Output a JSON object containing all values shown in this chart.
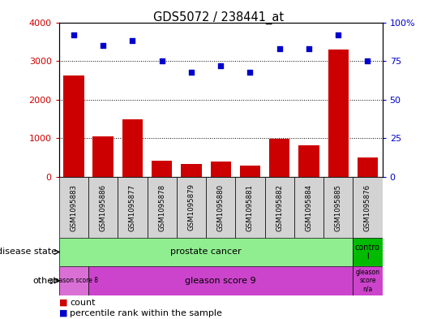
{
  "title": "GDS5072 / 238441_at",
  "samples": [
    "GSM1095883",
    "GSM1095886",
    "GSM1095877",
    "GSM1095878",
    "GSM1095879",
    "GSM1095880",
    "GSM1095881",
    "GSM1095882",
    "GSM1095884",
    "GSM1095885",
    "GSM1095876"
  ],
  "counts": [
    2620,
    1060,
    1500,
    415,
    330,
    405,
    305,
    990,
    820,
    3300,
    510
  ],
  "percentile_ranks": [
    92,
    85,
    88,
    75,
    68,
    72,
    68,
    83,
    83,
    92,
    75
  ],
  "ylim_left": [
    0,
    4000
  ],
  "ylim_right": [
    0,
    100
  ],
  "yticks_left": [
    0,
    1000,
    2000,
    3000,
    4000
  ],
  "yticks_right": [
    0,
    25,
    50,
    75,
    100
  ],
  "bar_color": "#cc0000",
  "dot_color": "#0000cc",
  "sample_bg": "#d3d3d3",
  "pc_color": "#90ee90",
  "ctrl_color": "#00bb00",
  "g8_color": "#da70d6",
  "g9_color": "#cc44cc",
  "gna_color": "#cc44cc"
}
